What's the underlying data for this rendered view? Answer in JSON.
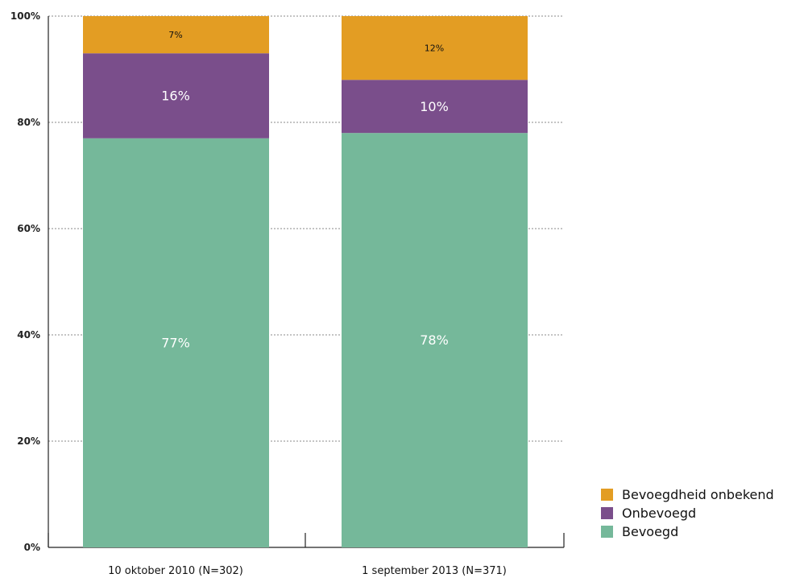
{
  "chart_data": {
    "type": "bar",
    "stacked": true,
    "categories": [
      "10 oktober 2010 (N=302)",
      "1 september 2013 (N=371)"
    ],
    "series": [
      {
        "name": "Bevoegd",
        "color": "#75b89a",
        "values": [
          77,
          78
        ],
        "labels": [
          "77%",
          "78%"
        ]
      },
      {
        "name": "Onbevoegd",
        "color": "#7a4e8b",
        "values": [
          16,
          10
        ],
        "labels": [
          "16%",
          "10%"
        ]
      },
      {
        "name": "Bevoegdheid onbekend",
        "color": "#e39d23",
        "values": [
          7,
          12
        ],
        "labels": [
          "7%",
          "12%"
        ]
      }
    ],
    "ylim": [
      0,
      100
    ],
    "yticks": [
      0,
      20,
      40,
      60,
      80,
      100
    ],
    "ytick_labels": [
      "0%",
      "20%",
      "40%",
      "60%",
      "80%",
      "100%"
    ],
    "grid": true,
    "legend_position": "bottom-right",
    "legend_order": [
      "Bevoegdheid onbekend",
      "Onbevoegd",
      "Bevoegd"
    ],
    "title": "",
    "xlabel": "",
    "ylabel": ""
  }
}
